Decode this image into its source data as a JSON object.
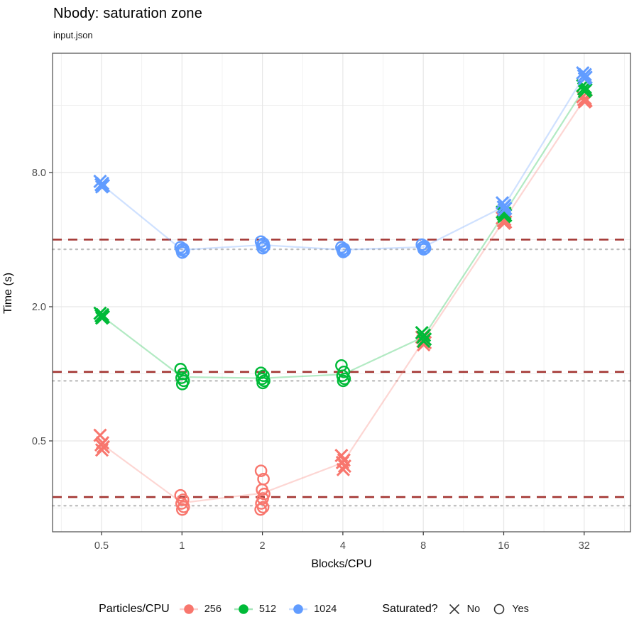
{
  "title": "Nbody: saturation zone",
  "subtitle": "input.json",
  "legend": {
    "color_title": "Particles/CPU",
    "shape_title": "Saturated?",
    "shape_entries": [
      {
        "glyph": "cross",
        "label": "No"
      },
      {
        "glyph": "circle",
        "label": "Yes"
      }
    ]
  },
  "chart_data": {
    "type": "scatter",
    "title": "Nbody: saturation zone",
    "subtitle": "input.json",
    "xlabel": "Blocks/CPU",
    "ylabel": "Time (s)",
    "x_scale": "log2",
    "y_scale": "log10",
    "x_ticks": [
      0.5,
      1,
      2,
      4,
      8,
      16,
      32
    ],
    "x_tick_labels": [
      "0.5",
      "1",
      "2",
      "4",
      "8",
      "16",
      "32"
    ],
    "x_minor_ticks": [
      0.3536,
      0.7071,
      1.4142,
      2.8284,
      5.6569,
      11.3137,
      22.6274,
      45.2548
    ],
    "y_ticks": [
      0.5,
      2.0,
      8.0
    ],
    "y_tick_labels": [
      "0.5",
      "2.0",
      "8.0"
    ],
    "y_minor_ticks": [
      0.25,
      1.0,
      4.0,
      16.0
    ],
    "x_range": [
      0.33,
      47.6
    ],
    "y_range": [
      0.196,
      27.4
    ],
    "grid": true,
    "legend_position": "bottom",
    "reference_lines": {
      "dashed": {
        "color": "#A33532",
        "values": [
          4.0,
          1.02,
          0.28
        ]
      },
      "dotted": {
        "color": "#BDBDBD",
        "values": [
          3.62,
          0.93,
          0.256
        ]
      }
    },
    "series": [
      {
        "name": "256",
        "color": "#F8766D",
        "clusters": [
          {
            "x": 0.5,
            "saturated": "No",
            "shape": "cross",
            "values": [
              0.53,
              0.49,
              0.48,
              0.47,
              0.455
            ]
          },
          {
            "x": 1,
            "saturated": "Yes",
            "shape": "circle",
            "values": [
              0.285,
              0.272,
              0.262,
              0.253,
              0.246
            ]
          },
          {
            "x": 2,
            "saturated": "Yes",
            "shape": "circle",
            "values": [
              0.367,
              0.337,
              0.302,
              0.289,
              0.276,
              0.262,
              0.252,
              0.246
            ]
          },
          {
            "x": 4,
            "saturated": "No",
            "shape": "cross",
            "values": [
              0.43,
              0.41,
              0.4,
              0.385,
              0.372
            ]
          },
          {
            "x": 8,
            "saturated": "No",
            "shape": "cross",
            "values": [
              1.46,
              1.43,
              1.4,
              1.38,
              1.35
            ]
          },
          {
            "x": 16,
            "saturated": "No",
            "shape": "cross",
            "values": [
              5.0,
              4.92,
              4.86,
              4.8,
              4.74
            ]
          },
          {
            "x": 32,
            "saturated": "No",
            "shape": "cross",
            "values": [
              17.5,
              17.2,
              17.0,
              16.8,
              16.6
            ]
          }
        ]
      },
      {
        "name": "512",
        "color": "#00BA38",
        "clusters": [
          {
            "x": 0.5,
            "saturated": "No",
            "shape": "cross",
            "values": [
              1.87,
              1.84,
              1.82,
              1.8,
              1.78
            ]
          },
          {
            "x": 1,
            "saturated": "Yes",
            "shape": "circle",
            "values": [
              1.05,
              1.0,
              0.96,
              0.93,
              0.9
            ]
          },
          {
            "x": 2,
            "saturated": "Yes",
            "shape": "circle",
            "values": [
              1.01,
              0.98,
              0.95,
              0.93,
              0.91
            ]
          },
          {
            "x": 4,
            "saturated": "Yes",
            "shape": "circle",
            "values": [
              1.09,
              1.02,
              0.98,
              0.95,
              0.93
            ]
          },
          {
            "x": 8,
            "saturated": "No",
            "shape": "cross",
            "values": [
              1.53,
              1.49,
              1.46,
              1.43,
              1.4
            ]
          },
          {
            "x": 16,
            "saturated": "No",
            "shape": "cross",
            "values": [
              5.32,
              5.25,
              5.2,
              5.14,
              5.08
            ]
          },
          {
            "x": 32,
            "saturated": "No",
            "shape": "cross",
            "values": [
              19.6,
              19.3,
              19.0,
              18.8,
              18.5
            ]
          }
        ]
      },
      {
        "name": "1024",
        "color": "#619CFF",
        "clusters": [
          {
            "x": 0.5,
            "saturated": "No",
            "shape": "cross",
            "values": [
              7.3,
              7.15,
              7.05,
              6.98,
              6.9
            ]
          },
          {
            "x": 1,
            "saturated": "Yes",
            "shape": "circle",
            "values": [
              3.7,
              3.64,
              3.6,
              3.56,
              3.5
            ]
          },
          {
            "x": 2,
            "saturated": "Yes",
            "shape": "circle",
            "values": [
              3.92,
              3.84,
              3.78,
              3.72,
              3.66
            ]
          },
          {
            "x": 4,
            "saturated": "Yes",
            "shape": "circle",
            "values": [
              3.7,
              3.64,
              3.6,
              3.56,
              3.52
            ]
          },
          {
            "x": 8,
            "saturated": "Yes",
            "shape": "circle",
            "values": [
              3.8,
              3.74,
              3.7,
              3.66,
              3.62
            ]
          },
          {
            "x": 16,
            "saturated": "No",
            "shape": "cross",
            "values": [
              5.85,
              5.7,
              5.6,
              5.52,
              5.44
            ]
          },
          {
            "x": 32,
            "saturated": "No",
            "shape": "cross",
            "values": [
              22.4,
              22.0,
              21.7,
              21.4,
              21.1
            ]
          }
        ]
      }
    ]
  }
}
